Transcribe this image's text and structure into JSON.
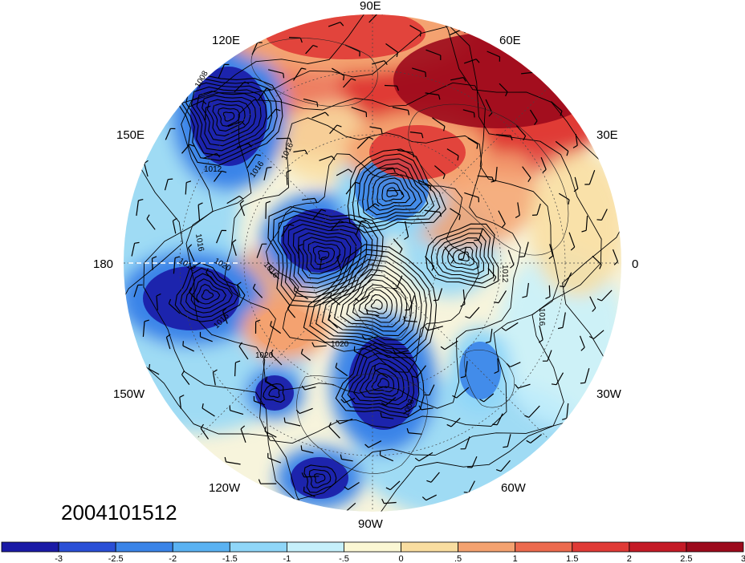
{
  "map": {
    "longitude_labels": [
      "90E",
      "60E",
      "30E",
      "0",
      "30W",
      "60W",
      "90W",
      "120W",
      "150W",
      "180",
      "150E",
      "120E"
    ],
    "timestamp": "2004101512",
    "contour_labels": [
      "1008",
      "1012",
      "1016",
      "1016",
      "1020",
      "1012",
      "1016",
      "1020",
      "1020",
      "1016",
      "1008",
      "1016",
      "1012",
      "1016"
    ]
  },
  "colorbar": {
    "colors": [
      "#1a1aa6",
      "#2a4fd6",
      "#3a84e8",
      "#5ab2f2",
      "#8fd6f8",
      "#c6f0fb",
      "#fbf7d4",
      "#f9dda0",
      "#f4a270",
      "#ec6a4e",
      "#e03a36",
      "#c41a26",
      "#9c0a1c"
    ],
    "tick_labels": [
      "-3",
      "-2.5",
      "-2",
      "-1.5",
      "-1",
      "-.5",
      "0",
      ".5",
      "1",
      "1.5",
      "2",
      "2.5",
      "3"
    ]
  },
  "anomaly_features": [
    {
      "sign": "neg",
      "strength": 3,
      "name": "low-120E"
    },
    {
      "sign": "neg",
      "strength": 3,
      "name": "low-180"
    },
    {
      "sign": "neg",
      "strength": 3,
      "name": "low-150W"
    },
    {
      "sign": "neg",
      "strength": 3,
      "name": "low-90W-hudson"
    },
    {
      "sign": "neg",
      "strength": 3,
      "name": "low-120W-south"
    },
    {
      "sign": "neg",
      "strength": 3,
      "name": "low-pole-east-siberia"
    },
    {
      "sign": "neg",
      "strength": 2,
      "name": "low-barents"
    },
    {
      "sign": "neg",
      "strength": 2,
      "name": "low-north-atlantic"
    },
    {
      "sign": "pos",
      "strength": 3,
      "name": "high-60E-siberia"
    },
    {
      "sign": "pos",
      "strength": 2,
      "name": "high-90E-mongolia"
    },
    {
      "sign": "pos",
      "strength": 2,
      "name": "high-central-arctic"
    },
    {
      "sign": "pos",
      "strength": 1,
      "name": "high-alaska"
    }
  ]
}
